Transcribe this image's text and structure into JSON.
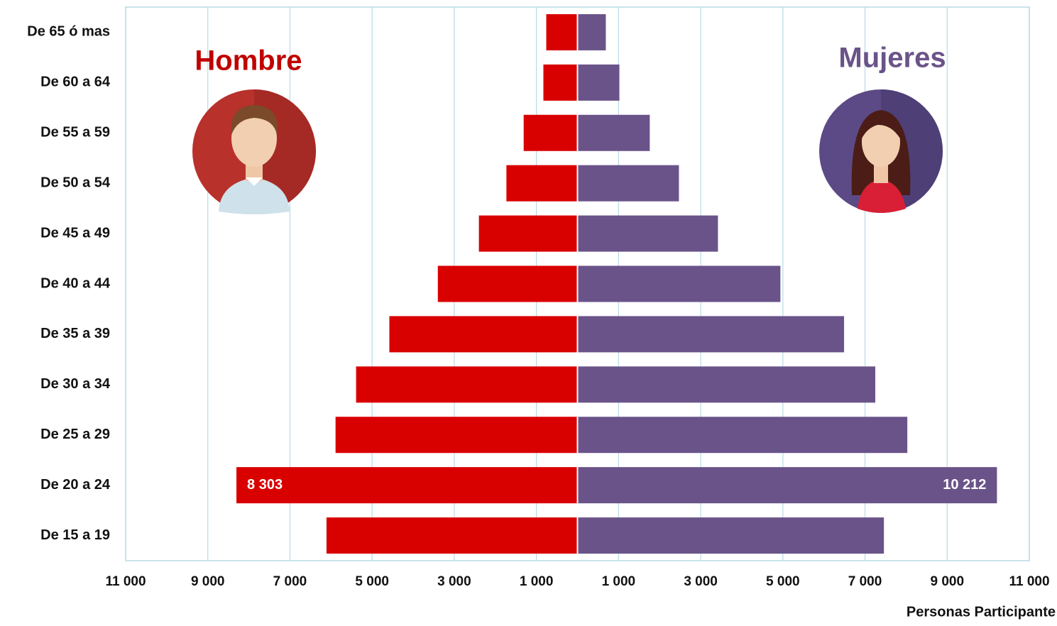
{
  "chart_data": {
    "type": "pyramid",
    "categories": [
      "De 65 ó mas",
      "De 60 a 64",
      "De 55 a 59",
      "De 50 a 54",
      "De 45 a 49",
      "De 40 a 44",
      "De 35 a 39",
      "De 30 a 34",
      "De 25 a 29",
      "De 20 a 24",
      "De 15 a 19"
    ],
    "series": [
      {
        "name": "Hombre",
        "color": "#d90000",
        "values": [
          760,
          830,
          1310,
          1730,
          2400,
          3400,
          4580,
          5390,
          5890,
          8303,
          6110
        ],
        "value_labels": [
          null,
          null,
          null,
          null,
          null,
          null,
          null,
          null,
          null,
          "8 303",
          null
        ]
      },
      {
        "name": "Mujeres",
        "color": "#6a5389",
        "values": [
          690,
          1020,
          1760,
          2470,
          3420,
          4940,
          6490,
          7250,
          8030,
          10212,
          7460
        ],
        "value_labels": [
          null,
          null,
          null,
          null,
          null,
          null,
          null,
          null,
          null,
          "10 212",
          null
        ]
      }
    ],
    "xlabel": "Personas Participante",
    "xlim": [
      -11000,
      11000
    ],
    "xticks": [
      {
        "value": -11000,
        "label": "11 000"
      },
      {
        "value": -9000,
        "label": "9 000"
      },
      {
        "value": -7000,
        "label": "7 000"
      },
      {
        "value": -5000,
        "label": "5 000"
      },
      {
        "value": -3000,
        "label": "3 000"
      },
      {
        "value": -1000,
        "label": "1 000"
      },
      {
        "value": 1000,
        "label": "1 000"
      },
      {
        "value": 3000,
        "label": "3 000"
      },
      {
        "value": 5000,
        "label": "5 000"
      },
      {
        "value": 7000,
        "label": "7 000"
      },
      {
        "value": 9000,
        "label": "9 000"
      },
      {
        "value": 11000,
        "label": "11 000"
      }
    ],
    "grid": true
  }
}
